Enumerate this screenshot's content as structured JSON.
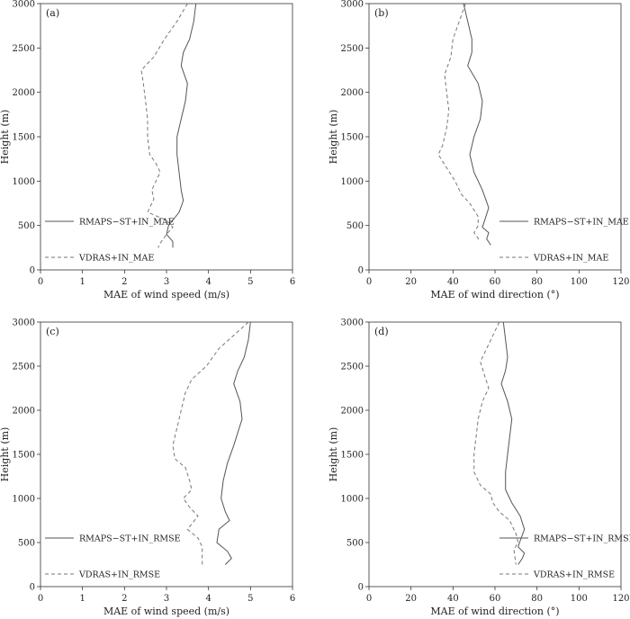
{
  "chart_data": [
    {
      "type": "line",
      "panel_label": "(a)",
      "xlabel": "MAE of wind speed (m/s)",
      "ylabel": "Height (m)",
      "xlim": [
        0,
        6
      ],
      "ylim": [
        0,
        3000
      ],
      "xticks": [
        "0",
        "1",
        "2",
        "3",
        "4",
        "5",
        "6"
      ],
      "yticks": [
        "0",
        "500",
        "1000",
        "1500",
        "2000",
        "2500",
        "3000"
      ],
      "legend_position": "bottom-left",
      "series": [
        {
          "name": "RMAPS−ST+IN_MAE",
          "style": "solid",
          "color": "#555555",
          "points": [
            [
              3.7,
              3000
            ],
            [
              3.65,
              2800
            ],
            [
              3.55,
              2600
            ],
            [
              3.4,
              2450
            ],
            [
              3.35,
              2300
            ],
            [
              3.5,
              2100
            ],
            [
              3.45,
              1900
            ],
            [
              3.35,
              1700
            ],
            [
              3.25,
              1500
            ],
            [
              3.25,
              1300
            ],
            [
              3.3,
              1100
            ],
            [
              3.35,
              900
            ],
            [
              3.4,
              780
            ],
            [
              3.3,
              650
            ],
            [
              3.05,
              500
            ],
            [
              3.0,
              400
            ],
            [
              3.15,
              320
            ],
            [
              3.15,
              250
            ]
          ]
        },
        {
          "name": "VDRAS+IN_MAE",
          "style": "dashed",
          "color": "#777777",
          "points": [
            [
              3.5,
              3000
            ],
            [
              3.25,
              2800
            ],
            [
              2.95,
              2600
            ],
            [
              2.7,
              2400
            ],
            [
              2.4,
              2250
            ],
            [
              2.45,
              2100
            ],
            [
              2.5,
              1900
            ],
            [
              2.55,
              1700
            ],
            [
              2.55,
              1500
            ],
            [
              2.6,
              1300
            ],
            [
              2.75,
              1200
            ],
            [
              2.85,
              1100
            ],
            [
              2.75,
              1000
            ],
            [
              2.65,
              900
            ],
            [
              2.7,
              800
            ],
            [
              2.55,
              650
            ],
            [
              3.0,
              560
            ],
            [
              3.15,
              480
            ],
            [
              3.0,
              400
            ],
            [
              2.85,
              300
            ],
            [
              2.8,
              250
            ]
          ]
        }
      ]
    },
    {
      "type": "line",
      "panel_label": "(b)",
      "xlabel": "MAE of wind direction (°)",
      "ylabel": "Height (m)",
      "xlim": [
        0,
        120
      ],
      "ylim": [
        0,
        3000
      ],
      "xticks": [
        "0",
        "20",
        "40",
        "60",
        "80",
        "100",
        "120"
      ],
      "yticks": [
        "0",
        "500",
        "1000",
        "1500",
        "2000",
        "2500",
        "3000"
      ],
      "legend_position": "bottom-right",
      "series": [
        {
          "name": "RMAPS−ST+IN_MAE",
          "style": "solid",
          "color": "#555555",
          "points": [
            [
              45,
              3000
            ],
            [
              47,
              2800
            ],
            [
              49,
              2600
            ],
            [
              49,
              2450
            ],
            [
              47,
              2300
            ],
            [
              52,
              2100
            ],
            [
              54,
              1900
            ],
            [
              53,
              1700
            ],
            [
              50,
              1500
            ],
            [
              48,
              1300
            ],
            [
              50,
              1100
            ],
            [
              54,
              900
            ],
            [
              57,
              700
            ],
            [
              55,
              550
            ],
            [
              54,
              480
            ],
            [
              57,
              420
            ],
            [
              56,
              350
            ],
            [
              58,
              280
            ]
          ]
        },
        {
          "name": "VDRAS+IN_MAE",
          "style": "dashed",
          "color": "#777777",
          "points": [
            [
              46,
              3000
            ],
            [
              43,
              2800
            ],
            [
              40,
              2600
            ],
            [
              39,
              2400
            ],
            [
              36,
              2200
            ],
            [
              37,
              2000
            ],
            [
              38,
              1800
            ],
            [
              37,
              1600
            ],
            [
              35,
              1400
            ],
            [
              33,
              1300
            ],
            [
              37,
              1150
            ],
            [
              41,
              1000
            ],
            [
              44,
              850
            ],
            [
              48,
              750
            ],
            [
              52,
              600
            ],
            [
              52,
              500
            ],
            [
              50,
              420
            ],
            [
              53,
              320
            ]
          ]
        }
      ]
    },
    {
      "type": "line",
      "panel_label": "(c)",
      "xlabel": "MAE of wind speed (m/s)",
      "ylabel": "Height (m)",
      "xlim": [
        0,
        6
      ],
      "ylim": [
        0,
        3000
      ],
      "xticks": [
        "0",
        "1",
        "2",
        "3",
        "4",
        "5",
        "6"
      ],
      "yticks": [
        "0",
        "500",
        "1000",
        "1500",
        "2000",
        "2500",
        "3000"
      ],
      "legend_position": "bottom-left",
      "series": [
        {
          "name": "RMAPS−ST+IN_RMSE",
          "style": "solid",
          "color": "#555555",
          "points": [
            [
              5.0,
              3000
            ],
            [
              4.95,
              2800
            ],
            [
              4.85,
              2600
            ],
            [
              4.7,
              2450
            ],
            [
              4.6,
              2300
            ],
            [
              4.75,
              2100
            ],
            [
              4.8,
              1900
            ],
            [
              4.7,
              1750
            ],
            [
              4.6,
              1600
            ],
            [
              4.45,
              1400
            ],
            [
              4.35,
              1200
            ],
            [
              4.3,
              1000
            ],
            [
              4.4,
              850
            ],
            [
              4.5,
              750
            ],
            [
              4.25,
              650
            ],
            [
              4.2,
              500
            ],
            [
              4.45,
              400
            ],
            [
              4.55,
              320
            ],
            [
              4.4,
              250
            ]
          ]
        },
        {
          "name": "VDRAS+IN_RMSE",
          "style": "dashed",
          "color": "#777777",
          "points": [
            [
              4.95,
              3000
            ],
            [
              4.6,
              2850
            ],
            [
              4.25,
              2700
            ],
            [
              3.95,
              2500
            ],
            [
              3.6,
              2350
            ],
            [
              3.45,
              2200
            ],
            [
              3.35,
              2000
            ],
            [
              3.25,
              1800
            ],
            [
              3.15,
              1600
            ],
            [
              3.2,
              1450
            ],
            [
              3.45,
              1350
            ],
            [
              3.55,
              1200
            ],
            [
              3.6,
              1100
            ],
            [
              3.4,
              1000
            ],
            [
              3.55,
              900
            ],
            [
              3.75,
              800
            ],
            [
              3.5,
              650
            ],
            [
              3.75,
              550
            ],
            [
              3.85,
              450
            ],
            [
              3.85,
              250
            ]
          ]
        }
      ]
    },
    {
      "type": "line",
      "panel_label": "(d)",
      "xlabel": "MAE of wind direction (°)",
      "ylabel": "Height (m)",
      "xlim": [
        0,
        120
      ],
      "ylim": [
        0,
        3000
      ],
      "xticks": [
        "0",
        "20",
        "40",
        "60",
        "80",
        "100",
        "120"
      ],
      "yticks": [
        "0",
        "500",
        "1000",
        "1500",
        "2000",
        "2500",
        "3000"
      ],
      "legend_position": "bottom-right",
      "series": [
        {
          "name": "RMAPS−ST+IN_RMSE",
          "style": "solid",
          "color": "#555555",
          "points": [
            [
              64,
              3000
            ],
            [
              65,
              2800
            ],
            [
              66,
              2600
            ],
            [
              65,
              2450
            ],
            [
              63,
              2300
            ],
            [
              66,
              2100
            ],
            [
              68,
              1900
            ],
            [
              67,
              1700
            ],
            [
              66,
              1500
            ],
            [
              65,
              1300
            ],
            [
              65,
              1100
            ],
            [
              68,
              950
            ],
            [
              72,
              800
            ],
            [
              74,
              650
            ],
            [
              72,
              520
            ],
            [
              71,
              450
            ],
            [
              74,
              380
            ],
            [
              73,
              320
            ],
            [
              71,
              250
            ]
          ]
        },
        {
          "name": "VDRAS+IN_RMSE",
          "style": "dashed",
          "color": "#777777",
          "points": [
            [
              62,
              3000
            ],
            [
              59,
              2850
            ],
            [
              56,
              2700
            ],
            [
              53,
              2550
            ],
            [
              55,
              2400
            ],
            [
              57,
              2250
            ],
            [
              54,
              2100
            ],
            [
              52,
              1900
            ],
            [
              51,
              1700
            ],
            [
              50,
              1500
            ],
            [
              50,
              1300
            ],
            [
              53,
              1150
            ],
            [
              58,
              1050
            ],
            [
              59,
              950
            ],
            [
              62,
              850
            ],
            [
              67,
              750
            ],
            [
              70,
              600
            ],
            [
              71,
              500
            ],
            [
              69,
              420
            ],
            [
              70,
              250
            ]
          ]
        }
      ]
    }
  ]
}
